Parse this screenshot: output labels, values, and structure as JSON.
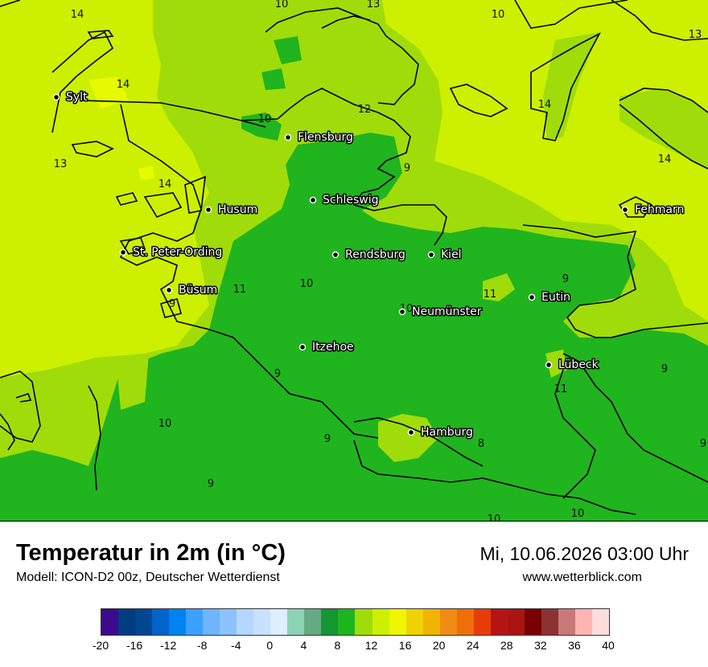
{
  "map": {
    "cities": [
      {
        "name": "Sylt"
      },
      {
        "name": "Flensburg"
      },
      {
        "name": "Schleswig"
      },
      {
        "name": "Husum"
      },
      {
        "name": "Fehmarn"
      },
      {
        "name": "St. Peter-Ording"
      },
      {
        "name": "Rendsburg"
      },
      {
        "name": "Kiel"
      },
      {
        "name": "Büsum"
      },
      {
        "name": "Neumünster"
      },
      {
        "name": "Eutin"
      },
      {
        "name": "Itzehoe"
      },
      {
        "name": "Lübeck"
      },
      {
        "name": "Hamburg"
      }
    ],
    "isotherm_labels": [
      "14",
      "10",
      "13",
      "10",
      "13",
      "14",
      "10",
      "12",
      "14",
      "13",
      "9",
      "14",
      "14",
      "11",
      "9",
      "10",
      "11",
      "9",
      "10",
      "11",
      "9",
      "11",
      "10",
      "9",
      "8",
      "9",
      "9",
      "10",
      "10",
      "9"
    ],
    "colors": {
      "c8": "#14a03c",
      "c10": "#20b41e",
      "c12": "#a0dc0a",
      "c14": "#ccf000",
      "c16": "#e6fa00",
      "coast": "#000000"
    }
  },
  "footer": {
    "title": "Temperatur in 2m (in °C)",
    "model": "Modell: ICON-D2 00z, Deutscher Wetterdienst",
    "datetime": "Mi, 10.06.2026 03:00 Uhr",
    "website": "www.wetterblick.com"
  },
  "legend": {
    "ticks": [
      "-20",
      "-16",
      "-12",
      "-8",
      "-4",
      "0",
      "4",
      "8",
      "12",
      "16",
      "20",
      "24",
      "28",
      "32",
      "36",
      "40"
    ],
    "colors": [
      "#3c0a8c",
      "#003c82",
      "#004690",
      "#0064c8",
      "#0082f0",
      "#3ca0ff",
      "#6eb4ff",
      "#8cc3ff",
      "#b4d7ff",
      "#c8e1ff",
      "#dceeff",
      "#8cd2b4",
      "#64aa82",
      "#149632",
      "#1eb41e",
      "#a0dc0a",
      "#ccf000",
      "#f0f500",
      "#f0d200",
      "#f0b400",
      "#f08c14",
      "#f06e0a",
      "#e63c0a",
      "#b41414",
      "#aa1414",
      "#780000",
      "#8c3232",
      "#c87878",
      "#ffb4b4",
      "#ffdcdc"
    ]
  }
}
